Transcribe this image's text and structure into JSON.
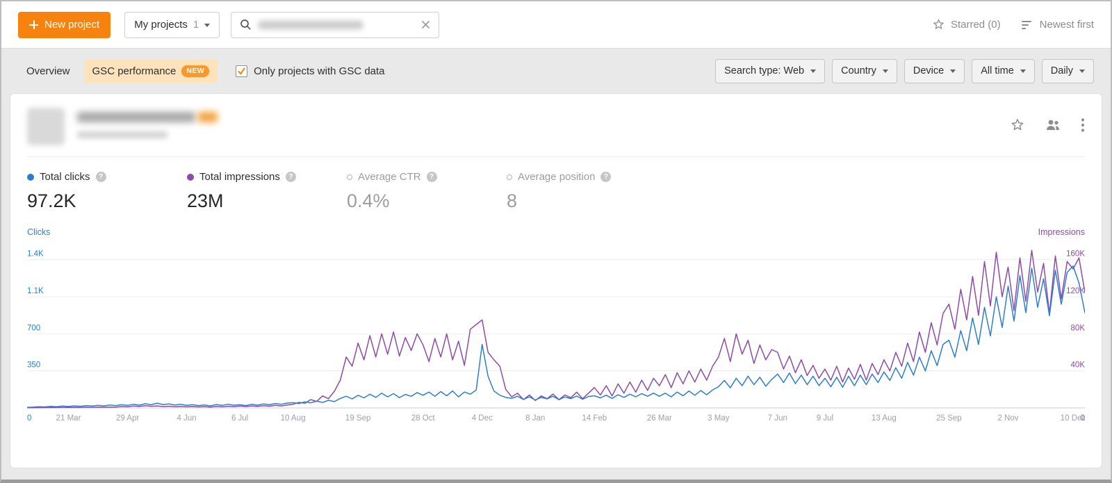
{
  "glyphs": {
    "help": "?"
  },
  "toolbar": {
    "new_project_label": "New project",
    "projects_filter": {
      "label": "My projects",
      "count": "1"
    },
    "starred_label": "Starred (0)",
    "sort_label": "Newest first"
  },
  "filter_bar": {
    "tabs": [
      {
        "label": "Overview"
      },
      {
        "label": "GSC performance",
        "badge": "NEW"
      }
    ],
    "gsc_checkbox_label": "Only projects with GSC data",
    "gsc_checkbox_checked": true,
    "dropdowns": [
      "Search type: Web",
      "Country",
      "Device",
      "All time",
      "Daily"
    ]
  },
  "project_card": {
    "metrics": [
      {
        "label": "Total clicks",
        "value": "97.2K",
        "enabled": true
      },
      {
        "label": "Total impressions",
        "value": "23M",
        "enabled": true
      },
      {
        "label": "Average CTR",
        "value": "0.4%",
        "enabled": false
      },
      {
        "label": "Average position",
        "value": "8",
        "enabled": false
      }
    ]
  },
  "chart_data": {
    "type": "line",
    "title": "GSC performance",
    "grid": true,
    "legend_position": "none",
    "left_axis": {
      "label": "Clicks",
      "max": 1575,
      "ticks": [
        {
          "label": "0",
          "value": 0
        },
        {
          "label": "350",
          "value": 350
        },
        {
          "label": "700",
          "value": 700
        },
        {
          "label": "1.1K",
          "value": 1050
        },
        {
          "label": "1.4K",
          "value": 1400
        }
      ]
    },
    "right_axis": {
      "label": "Impressions",
      "max": 180000,
      "ticks": [
        {
          "label": "0",
          "value": 0
        },
        {
          "label": "40K",
          "value": 40000
        },
        {
          "label": "80K",
          "value": 80000
        },
        {
          "label": "120K",
          "value": 120000
        },
        {
          "label": "160K",
          "value": 160000
        }
      ]
    },
    "x_labels": [
      "21 Mar",
      "29 Apr",
      "4 Jun",
      "6 Jul",
      "10 Aug",
      "19 Sep",
      "28 Oct",
      "4 Dec",
      "8 Jan",
      "14 Feb",
      "26 Mar",
      "3 May",
      "7 Jun",
      "9 Jul",
      "13 Aug",
      "25 Sep",
      "2 Nov",
      "10 Dec"
    ],
    "x_label_indices": [
      7,
      17,
      27,
      36,
      45,
      56,
      67,
      77,
      86,
      96,
      107,
      117,
      127,
      135,
      145,
      156,
      166,
      177
    ],
    "series": [
      {
        "name": "Clicks",
        "color": "#2c7dd2",
        "values": [
          5,
          8,
          12,
          10,
          15,
          12,
          18,
          14,
          20,
          16,
          22,
          18,
          25,
          20,
          28,
          22,
          30,
          24,
          35,
          26,
          40,
          30,
          45,
          32,
          38,
          28,
          35,
          25,
          30,
          22,
          28,
          20,
          32,
          24,
          35,
          26,
          30,
          22,
          34,
          26,
          38,
          30,
          42,
          34,
          46,
          50,
          42,
          58,
          48,
          65,
          52,
          72,
          60,
          90,
          110,
          85,
          120,
          95,
          130,
          100,
          140,
          105,
          135,
          98,
          128,
          110,
          145,
          120,
          150,
          110,
          155,
          115,
          160,
          105,
          150,
          130,
          170,
          600,
          300,
          160,
          120,
          100,
          90,
          110,
          80,
          105,
          75,
          100,
          85,
          110,
          78,
          104,
          88,
          112,
          82,
          108,
          115,
          95,
          120,
          90,
          125,
          100,
          130,
          105,
          135,
          110,
          140,
          110,
          140,
          105,
          150,
          115,
          160,
          120,
          165,
          125,
          170,
          200,
          260,
          190,
          280,
          210,
          300,
          220,
          290,
          205,
          270,
          320,
          240,
          330,
          230,
          310,
          220,
          300,
          210,
          280,
          200,
          290,
          195,
          300,
          210,
          310,
          220,
          320,
          240,
          340,
          260,
          380,
          280,
          430,
          310,
          480,
          350,
          540,
          400,
          600,
          640,
          480,
          730,
          540,
          850,
          600,
          950,
          680,
          1050,
          760,
          1150,
          820,
          1250,
          900,
          1320,
          950,
          1220,
          870,
          1300,
          980,
          1280,
          1340,
          1180,
          900
        ]
      },
      {
        "name": "Impressions",
        "color": "#8d4aa8",
        "values": [
          200,
          300,
          400,
          350,
          500,
          450,
          600,
          500,
          700,
          600,
          800,
          700,
          900,
          800,
          1000,
          900,
          1500,
          1200,
          2000,
          1600,
          2500,
          1800,
          2200,
          1500,
          1800,
          1300,
          1600,
          1200,
          1500,
          1100,
          1400,
          1000,
          1600,
          1200,
          1800,
          1400,
          2000,
          1500,
          2200,
          1700,
          2500,
          1900,
          2800,
          2200,
          3200,
          4000,
          6000,
          5000,
          9000,
          7000,
          13000,
          10000,
          18000,
          30000,
          55000,
          45000,
          70000,
          52000,
          78000,
          55000,
          80000,
          58000,
          82000,
          56000,
          76000,
          62000,
          80000,
          68000,
          50000,
          75000,
          55000,
          80000,
          52000,
          72000,
          46000,
          85000,
          90000,
          95000,
          60000,
          52000,
          45000,
          20000,
          12000,
          16000,
          9000,
          14000,
          8000,
          13000,
          10000,
          15000,
          9000,
          14000,
          11000,
          17000,
          10000,
          16000,
          22000,
          14000,
          24000,
          13000,
          26000,
          16000,
          28000,
          17000,
          30000,
          19000,
          32000,
          24000,
          36000,
          22000,
          38000,
          26000,
          40000,
          28000,
          42000,
          30000,
          45000,
          55000,
          75000,
          50000,
          80000,
          58000,
          73000,
          48000,
          68000,
          52000,
          63000,
          60000,
          42000,
          56000,
          38000,
          52000,
          35000,
          46000,
          32000,
          42000,
          30000,
          45000,
          28000,
          43000,
          31000,
          47000,
          30000,
          48000,
          36000,
          52000,
          40000,
          60000,
          45000,
          70000,
          50000,
          82000,
          60000,
          92000,
          68000,
          102000,
          112000,
          85000,
          128000,
          95000,
          142000,
          100000,
          158000,
          110000,
          168000,
          120000,
          152000,
          105000,
          162000,
          115000,
          170000,
          125000,
          156000,
          102000,
          164000,
          118000,
          158000,
          150000,
          162000,
          125000
        ]
      }
    ]
  }
}
